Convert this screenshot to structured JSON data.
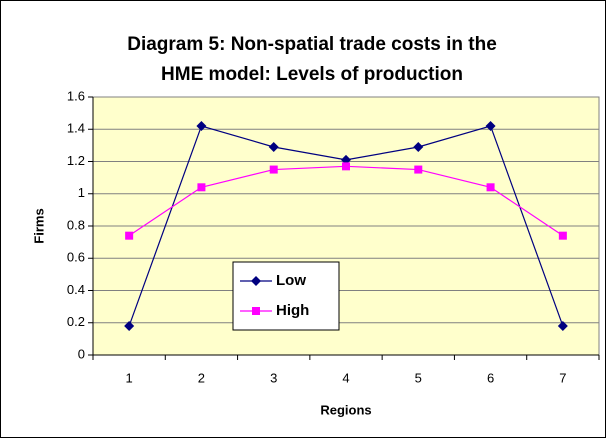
{
  "chart_data": {
    "type": "line",
    "title": [
      "Diagram 5: Non-spatial trade costs in the",
      "HME model: Levels of production"
    ],
    "categories": [
      "1",
      "2",
      "3",
      "4",
      "5",
      "6",
      "7"
    ],
    "series": [
      {
        "name": "Low",
        "color": "#000080",
        "marker": "diamond",
        "values": [
          0.18,
          1.42,
          1.29,
          1.21,
          1.29,
          1.42,
          0.18
        ]
      },
      {
        "name": "High",
        "color": "#FF00FF",
        "marker": "square",
        "values": [
          0.74,
          1.04,
          1.15,
          1.17,
          1.15,
          1.04,
          0.74
        ]
      }
    ],
    "xlabel": "Regions",
    "ylabel": "Firms",
    "ylim": [
      0,
      1.6
    ],
    "yticks": [
      0,
      0.2,
      0.4,
      0.6,
      0.8,
      1,
      1.2,
      1.4,
      1.6
    ],
    "grid": true,
    "background": "#FFFFCC"
  }
}
